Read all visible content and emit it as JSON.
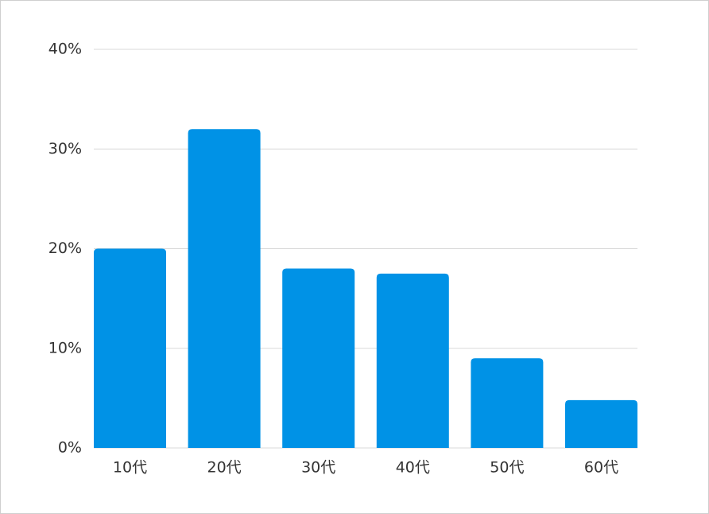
{
  "chart_data": {
    "type": "bar",
    "categories": [
      "10代",
      "20代",
      "30代",
      "40代",
      "50代",
      "60代"
    ],
    "values": [
      20,
      32,
      18,
      17.5,
      9,
      4.8
    ],
    "color": "#0092e6",
    "ylim": [
      0,
      40
    ],
    "yticks": [
      {
        "value": 0,
        "label": "0%"
      },
      {
        "value": 10,
        "label": "10%"
      },
      {
        "value": 20,
        "label": "20%"
      },
      {
        "value": 30,
        "label": "30%"
      },
      {
        "value": 40,
        "label": "40%"
      }
    ],
    "grid": true
  }
}
